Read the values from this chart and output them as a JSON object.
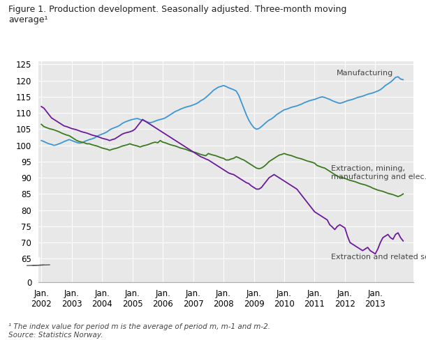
{
  "title": "Figure 1. Production development. Seasonally adjusted. Three-month moving\naverage¹",
  "footnote": "¹ The index value for period m is the average of period m, m-1 and m-2.\nSource: Statistics Norway.",
  "line_colors": [
    "#3c96d4",
    "#3a7a1e",
    "#6a1a9a"
  ],
  "line_labels": [
    "Manufacturing",
    "Extraction, mining,\nmanufacturing and elec.",
    "Extraction and related services"
  ],
  "series": {
    "dates": [
      2002.0,
      2002.083,
      2002.167,
      2002.25,
      2002.333,
      2002.417,
      2002.5,
      2002.583,
      2002.667,
      2002.75,
      2002.833,
      2002.917,
      2003.0,
      2003.083,
      2003.167,
      2003.25,
      2003.333,
      2003.417,
      2003.5,
      2003.583,
      2003.667,
      2003.75,
      2003.833,
      2003.917,
      2004.0,
      2004.083,
      2004.167,
      2004.25,
      2004.333,
      2004.417,
      2004.5,
      2004.583,
      2004.667,
      2004.75,
      2004.833,
      2004.917,
      2005.0,
      2005.083,
      2005.167,
      2005.25,
      2005.333,
      2005.417,
      2005.5,
      2005.583,
      2005.667,
      2005.75,
      2005.833,
      2005.917,
      2006.0,
      2006.083,
      2006.167,
      2006.25,
      2006.333,
      2006.417,
      2006.5,
      2006.583,
      2006.667,
      2006.75,
      2006.833,
      2006.917,
      2007.0,
      2007.083,
      2007.167,
      2007.25,
      2007.333,
      2007.417,
      2007.5,
      2007.583,
      2007.667,
      2007.75,
      2007.833,
      2007.917,
      2008.0,
      2008.083,
      2008.167,
      2008.25,
      2008.333,
      2008.417,
      2008.5,
      2008.583,
      2008.667,
      2008.75,
      2008.833,
      2008.917,
      2009.0,
      2009.083,
      2009.167,
      2009.25,
      2009.333,
      2009.417,
      2009.5,
      2009.583,
      2009.667,
      2009.75,
      2009.833,
      2009.917,
      2010.0,
      2010.083,
      2010.167,
      2010.25,
      2010.333,
      2010.417,
      2010.5,
      2010.583,
      2010.667,
      2010.75,
      2010.833,
      2010.917,
      2011.0,
      2011.083,
      2011.167,
      2011.25,
      2011.333,
      2011.417,
      2011.5,
      2011.583,
      2011.667,
      2011.75,
      2011.833,
      2011.917,
      2012.0,
      2012.083,
      2012.167,
      2012.25,
      2012.333,
      2012.417,
      2012.5,
      2012.583,
      2012.667,
      2012.75,
      2012.833,
      2012.917,
      2013.0,
      2013.083,
      2013.167,
      2013.25,
      2013.333,
      2013.417,
      2013.5,
      2013.583,
      2013.667,
      2013.75,
      2013.833,
      2013.917
    ],
    "manufacturing": [
      101.5,
      101.2,
      100.8,
      100.5,
      100.3,
      100.0,
      100.2,
      100.5,
      100.8,
      101.2,
      101.5,
      101.8,
      101.5,
      101.2,
      100.9,
      100.7,
      100.8,
      101.2,
      101.5,
      101.8,
      102.0,
      102.3,
      102.8,
      103.2,
      103.5,
      103.8,
      104.2,
      104.8,
      105.2,
      105.5,
      105.8,
      106.2,
      106.8,
      107.2,
      107.5,
      107.8,
      108.0,
      108.2,
      108.3,
      108.0,
      107.8,
      107.5,
      107.2,
      107.0,
      107.2,
      107.5,
      107.8,
      108.0,
      108.2,
      108.5,
      109.0,
      109.5,
      110.0,
      110.5,
      110.8,
      111.2,
      111.5,
      111.8,
      112.0,
      112.2,
      112.5,
      112.8,
      113.2,
      113.8,
      114.2,
      114.8,
      115.5,
      116.2,
      117.0,
      117.5,
      118.0,
      118.2,
      118.5,
      118.2,
      117.8,
      117.5,
      117.2,
      116.8,
      115.5,
      113.5,
      111.5,
      109.5,
      107.8,
      106.5,
      105.5,
      105.0,
      105.2,
      105.8,
      106.5,
      107.2,
      107.8,
      108.2,
      108.8,
      109.5,
      110.0,
      110.5,
      111.0,
      111.2,
      111.5,
      111.8,
      112.0,
      112.2,
      112.5,
      112.8,
      113.2,
      113.5,
      113.8,
      114.0,
      114.2,
      114.5,
      114.8,
      115.0,
      114.8,
      114.5,
      114.2,
      113.8,
      113.5,
      113.2,
      113.0,
      113.2,
      113.5,
      113.8,
      114.0,
      114.2,
      114.5,
      114.8,
      115.0,
      115.2,
      115.5,
      115.8,
      116.0,
      116.2,
      116.5,
      116.8,
      117.2,
      117.8,
      118.5,
      119.0,
      119.5,
      120.2,
      121.0,
      121.2,
      120.5,
      120.3
    ],
    "extraction_mining": [
      106.5,
      105.8,
      105.5,
      105.2,
      105.0,
      104.8,
      104.5,
      104.2,
      103.8,
      103.5,
      103.2,
      103.0,
      102.5,
      102.0,
      101.5,
      101.2,
      101.0,
      100.8,
      100.5,
      100.5,
      100.2,
      100.0,
      99.8,
      99.5,
      99.2,
      99.0,
      98.8,
      98.5,
      98.8,
      99.0,
      99.2,
      99.5,
      99.8,
      100.0,
      100.2,
      100.5,
      100.2,
      100.0,
      99.8,
      99.5,
      99.8,
      100.0,
      100.2,
      100.5,
      100.8,
      101.0,
      100.8,
      101.5,
      101.0,
      100.8,
      100.5,
      100.2,
      100.0,
      99.8,
      99.5,
      99.2,
      99.0,
      98.8,
      98.5,
      98.2,
      98.0,
      97.8,
      97.5,
      97.2,
      97.0,
      96.8,
      97.5,
      97.2,
      97.0,
      96.8,
      96.5,
      96.2,
      96.0,
      95.5,
      95.5,
      95.8,
      96.0,
      96.5,
      96.2,
      95.8,
      95.5,
      95.0,
      94.5,
      94.0,
      93.5,
      93.0,
      92.8,
      93.0,
      93.5,
      94.2,
      95.0,
      95.5,
      96.0,
      96.5,
      97.0,
      97.2,
      97.5,
      97.2,
      97.0,
      96.8,
      96.5,
      96.2,
      96.0,
      95.8,
      95.5,
      95.2,
      95.0,
      94.8,
      94.5,
      93.8,
      93.5,
      93.2,
      93.0,
      92.5,
      92.0,
      91.5,
      91.0,
      90.5,
      90.2,
      90.0,
      89.8,
      89.5,
      89.2,
      89.0,
      88.8,
      88.5,
      88.2,
      88.0,
      87.8,
      87.5,
      87.2,
      86.8,
      86.5,
      86.2,
      86.0,
      85.8,
      85.5,
      85.2,
      85.0,
      84.8,
      84.5,
      84.2,
      84.5,
      85.0
    ],
    "extraction_services": [
      112.0,
      111.5,
      110.5,
      109.5,
      108.5,
      108.0,
      107.5,
      107.0,
      106.5,
      106.0,
      105.8,
      105.5,
      105.2,
      105.0,
      104.8,
      104.5,
      104.2,
      104.0,
      103.8,
      103.5,
      103.2,
      103.0,
      102.8,
      102.5,
      102.2,
      102.0,
      101.8,
      101.5,
      101.8,
      102.0,
      102.5,
      103.0,
      103.5,
      103.8,
      104.0,
      104.2,
      104.5,
      105.0,
      106.0,
      107.0,
      108.0,
      107.5,
      107.0,
      106.5,
      106.0,
      105.5,
      105.0,
      104.5,
      104.0,
      103.5,
      103.0,
      102.5,
      102.0,
      101.5,
      101.0,
      100.5,
      100.0,
      99.5,
      99.0,
      98.5,
      98.0,
      97.5,
      97.0,
      96.5,
      96.2,
      95.8,
      95.5,
      95.0,
      94.5,
      94.0,
      93.5,
      93.0,
      92.5,
      92.0,
      91.5,
      91.2,
      91.0,
      90.5,
      90.0,
      89.5,
      89.0,
      88.5,
      88.2,
      87.5,
      87.0,
      86.5,
      86.5,
      87.0,
      88.0,
      89.0,
      90.0,
      90.5,
      91.0,
      90.5,
      90.0,
      89.5,
      89.0,
      88.5,
      88.0,
      87.5,
      87.0,
      86.5,
      85.5,
      84.5,
      83.5,
      82.5,
      81.5,
      80.5,
      79.5,
      79.0,
      78.5,
      78.0,
      77.5,
      77.0,
      75.5,
      74.8,
      74.0,
      75.0,
      75.5,
      75.0,
      74.5,
      72.0,
      70.0,
      69.5,
      69.0,
      68.5,
      68.0,
      67.5,
      68.0,
      68.5,
      67.5,
      67.0,
      66.5,
      68.0,
      70.0,
      71.5,
      72.0,
      72.5,
      71.5,
      71.0,
      72.5,
      73.0,
      71.5,
      70.5
    ]
  }
}
